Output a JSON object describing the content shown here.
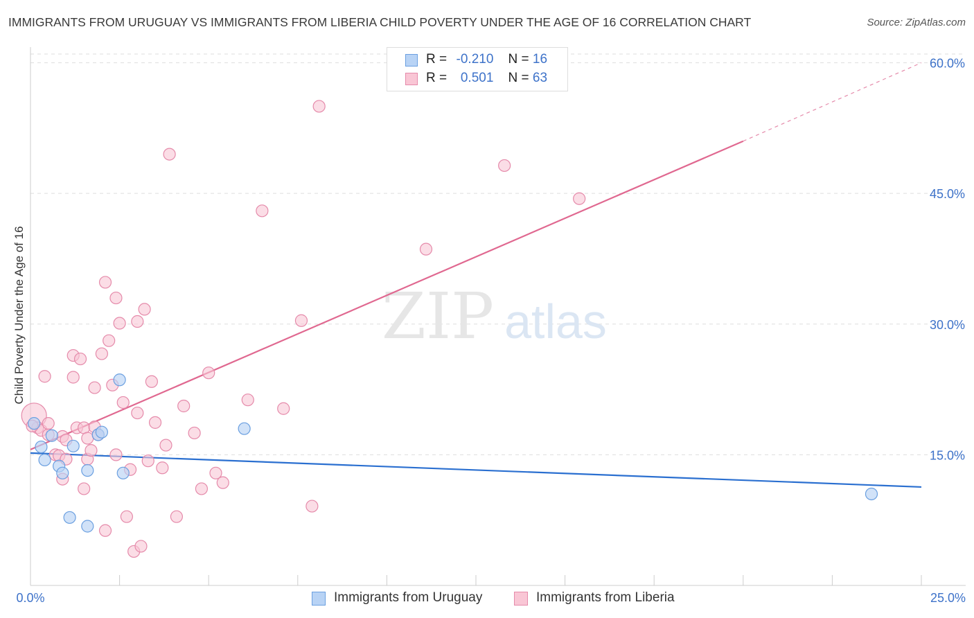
{
  "title": "IMMIGRANTS FROM URUGUAY VS IMMIGRANTS FROM LIBERIA CHILD POVERTY UNDER THE AGE OF 16 CORRELATION CHART",
  "source": "Source: ZipAtlas.com",
  "watermark": {
    "zip": "ZIP",
    "atlas": "atlas"
  },
  "legend": {
    "r_label": "R =",
    "n_label": "N =",
    "uruguay": {
      "r": "-0.210",
      "n": "16"
    },
    "liberia": {
      "r": "0.501",
      "n": "63"
    }
  },
  "colors": {
    "uruguay_fill": "#b8d3f5",
    "uruguay_stroke": "#6a9fe0",
    "uruguay_line": "#2a6fd0",
    "liberia_fill": "#f9c6d5",
    "liberia_stroke": "#e58aaa",
    "liberia_line": "#e06890",
    "axis_label": "#3d72c9",
    "grid": "#dddddd"
  },
  "chart_data": {
    "type": "scatter",
    "title": "IMMIGRANTS FROM URUGUAY VS IMMIGRANTS FROM LIBERIA CHILD POVERTY UNDER THE AGE OF 16 CORRELATION CHART",
    "xlabel": "",
    "ylabel": "Child Poverty Under the Age of 16",
    "xlim": [
      0,
      25
    ],
    "ylim": [
      0,
      61
    ],
    "x_tick_labels": [
      "0.0%",
      "25.0%"
    ],
    "y_ticks": [
      15,
      30,
      45,
      60
    ],
    "y_tick_labels": [
      "15.0%",
      "30.0%",
      "45.0%",
      "60.0%"
    ],
    "grid": true,
    "legend_position": "top-center",
    "series": [
      {
        "name": "Immigrants from Uruguay",
        "color": "#6a9fe0",
        "points": [
          [
            0.1,
            18.6
          ],
          [
            0.3,
            15.9
          ],
          [
            0.4,
            14.4
          ],
          [
            0.6,
            17.2
          ],
          [
            0.8,
            13.7
          ],
          [
            0.9,
            12.9
          ],
          [
            1.2,
            16.0
          ],
          [
            1.1,
            7.8
          ],
          [
            1.6,
            13.2
          ],
          [
            1.6,
            6.8
          ],
          [
            1.9,
            17.3
          ],
          [
            2.0,
            17.6
          ],
          [
            2.5,
            23.6
          ],
          [
            2.6,
            12.9
          ],
          [
            6.0,
            18.0
          ],
          [
            23.6,
            10.5
          ]
        ],
        "trend": {
          "x": [
            0,
            25
          ],
          "y": [
            15.2,
            11.3
          ]
        }
      },
      {
        "name": "Immigrants from Liberia",
        "color": "#e58aaa",
        "points": [
          [
            0.1,
            19.5
          ],
          [
            0.2,
            18.1
          ],
          [
            0.3,
            17.8
          ],
          [
            0.4,
            24.0
          ],
          [
            0.5,
            17.3
          ],
          [
            0.5,
            18.6
          ],
          [
            0.7,
            15.0
          ],
          [
            0.8,
            14.9
          ],
          [
            0.9,
            12.2
          ],
          [
            0.9,
            17.1
          ],
          [
            1.0,
            16.7
          ],
          [
            1.0,
            14.5
          ],
          [
            1.2,
            23.9
          ],
          [
            1.2,
            26.4
          ],
          [
            1.3,
            18.1
          ],
          [
            1.4,
            26.0
          ],
          [
            1.5,
            18.1
          ],
          [
            1.5,
            11.1
          ],
          [
            1.6,
            16.9
          ],
          [
            1.6,
            14.5
          ],
          [
            1.7,
            15.5
          ],
          [
            1.8,
            22.7
          ],
          [
            1.8,
            18.2
          ],
          [
            1.9,
            17.3
          ],
          [
            2.0,
            26.6
          ],
          [
            2.1,
            6.3
          ],
          [
            2.1,
            34.8
          ],
          [
            2.2,
            28.1
          ],
          [
            2.3,
            23.0
          ],
          [
            2.4,
            15.0
          ],
          [
            2.4,
            33.0
          ],
          [
            2.5,
            30.1
          ],
          [
            2.6,
            21.0
          ],
          [
            2.7,
            7.9
          ],
          [
            2.8,
            13.3
          ],
          [
            2.9,
            3.9
          ],
          [
            3.0,
            19.8
          ],
          [
            3.0,
            30.3
          ],
          [
            3.1,
            4.5
          ],
          [
            3.2,
            31.7
          ],
          [
            3.3,
            14.3
          ],
          [
            3.4,
            23.4
          ],
          [
            3.5,
            18.7
          ],
          [
            3.7,
            13.5
          ],
          [
            3.8,
            16.1
          ],
          [
            3.9,
            49.5
          ],
          [
            4.1,
            7.9
          ],
          [
            4.3,
            20.6
          ],
          [
            4.6,
            17.5
          ],
          [
            4.8,
            11.1
          ],
          [
            5.0,
            24.4
          ],
          [
            5.2,
            12.9
          ],
          [
            5.4,
            11.8
          ],
          [
            6.1,
            21.3
          ],
          [
            6.5,
            43.0
          ],
          [
            7.1,
            20.3
          ],
          [
            7.6,
            30.4
          ],
          [
            7.9,
            9.1
          ],
          [
            8.1,
            55.0
          ],
          [
            11.1,
            38.6
          ],
          [
            13.3,
            48.2
          ],
          [
            15.4,
            44.4
          ],
          [
            0.05,
            18.3
          ]
        ],
        "trend": {
          "x": [
            0,
            20
          ],
          "y": [
            15.6,
            51.0
          ]
        },
        "trend_extension": {
          "x": [
            20,
            25
          ],
          "y": [
            51.0,
            60.0
          ]
        }
      }
    ]
  },
  "bottom_legend": {
    "uruguay": "Immigrants from Uruguay",
    "liberia": "Immigrants from Liberia"
  }
}
